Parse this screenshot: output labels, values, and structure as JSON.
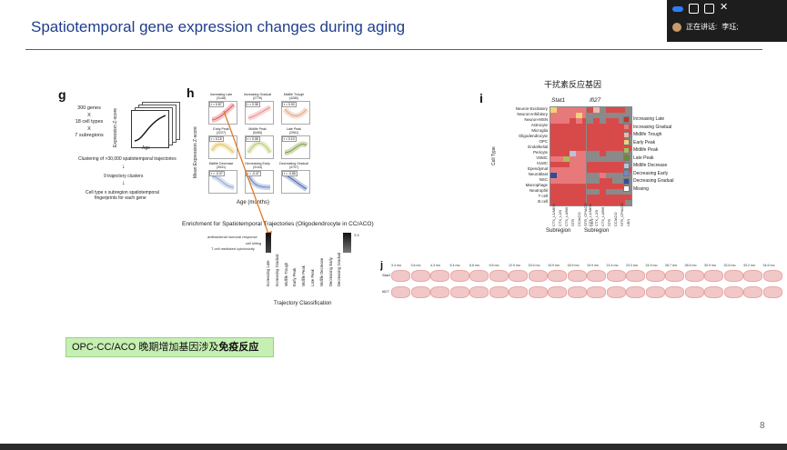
{
  "slide": {
    "title": "Spatiotemporal gene expression changes during aging",
    "page_number": "8",
    "callout_prefix": "OPC-CC/ACO 晚期增加基因涉及",
    "callout_bold": "免疫反应"
  },
  "meeting_bar": {
    "speaking_label": "正在讲话:",
    "speaker_name": "李珏;"
  },
  "panel_g": {
    "label": "g",
    "desc_lines": [
      "300 genes",
      "X",
      "18 cell types",
      "X",
      "7 subregions"
    ],
    "ylabel": "Expression Z-score",
    "xlabel": "Age",
    "step1": "Clustering of >30,000 spatiotemporal trajectories",
    "step2": "9 trajectory clusters",
    "step3_line1": "Cell type x subregion spatiotemporal",
    "step3_line2": "fingerprints for each gene"
  },
  "panel_h": {
    "label": "h",
    "ylabel": "Mean Expression Z-score",
    "xlabel": "Age (months)",
    "xticks": "10 20 30",
    "clusters": [
      {
        "name": "Increasing Late",
        "count": "(3148)",
        "r": "r = 0.87"
      },
      {
        "name": "Increasing Gradual",
        "count": "(2776)",
        "r": "r = 0.38"
      },
      {
        "name": "Midlife Trough",
        "count": "(4280)",
        "r": "r = 0.00"
      },
      {
        "name": "Early Peak",
        "count": "(2227)",
        "r": "r = 0.15"
      },
      {
        "name": "Midlife Peak",
        "count": "(5465)",
        "r": "r = 0.08"
      },
      {
        "name": "Late Peak",
        "count": "(2961)",
        "r": "r = 0.10"
      },
      {
        "name": "Midlife Decrease",
        "count": "(3531)",
        "r": "r = -0.07"
      },
      {
        "name": "Decreasing Early",
        "count": "(3144)",
        "r": "r = -0.47"
      },
      {
        "name": "Decreasing Gradual",
        "count": "(4707)",
        "r": "r = -0.85"
      }
    ]
  },
  "enrichment": {
    "title": "Enrichment for Spatiotemporal Trajectories (Oligodendrocyte in CC/ACO)",
    "terms": [
      "antibacterial humoral response",
      "cell killing",
      "T cell mediated cytotoxicity"
    ],
    "scale_max": "3.5",
    "xlabel": "Trajectory Classification",
    "categories": [
      "Increasing Late",
      "Increasing Gradual",
      "Midlife Trough",
      "Early Peak",
      "Midlife Peak",
      "Late Peak",
      "Midlife Decrease",
      "Decreasing Early",
      "Decreasing Gradual"
    ]
  },
  "panel_i": {
    "label": "i",
    "title": "干扰素反应基因",
    "heat_titles": [
      "Stat1",
      "Ifi27"
    ],
    "ylabel": "Cell Type",
    "xlabel": "Subregion",
    "cell_types": [
      "Neuron-Excitatory",
      "Neuron-Inhibitory",
      "Neuron-MSN",
      "Astrocyte",
      "Microglia",
      "Oligodendrocyte",
      "OPC",
      "Endothelial",
      "Pericyte",
      "VSMC",
      "VLMC",
      "Ependymal",
      "Neuroblast",
      "NSC",
      "Macrophage",
      "Neutrophil",
      "T cell",
      "B cell"
    ],
    "subregions": [
      "CTX_L1/MEN",
      "CTX_L2/3",
      "CTX_L4/5/6",
      "STR",
      "CC/ACO",
      "STR_CP/ACO",
      "VEN"
    ],
    "legend": [
      {
        "label": "Increasing Late",
        "color": "#c0392b"
      },
      {
        "label": "Increasing Gradual",
        "color": "#e8797a"
      },
      {
        "label": "Midlife Trough",
        "color": "#f0b7a8"
      },
      {
        "label": "Early Peak",
        "color": "#f1d27a"
      },
      {
        "label": "Midlife Peak",
        "color": "#a9bd5a"
      },
      {
        "label": "Late Peak",
        "color": "#6e8b2f"
      },
      {
        "label": "Midlife Decrease",
        "color": "#b8c4d8"
      },
      {
        "label": "Decreasing Early",
        "color": "#6f8ac2"
      },
      {
        "label": "Decreasing Gradual",
        "color": "#2b4fa0"
      },
      {
        "label": "Missing",
        "color": "#ffffff"
      }
    ]
  },
  "panel_j": {
    "label": "j",
    "ages": [
      "3.4 mo",
      "3.6 mo",
      "4.3 mo",
      "5.4 mo",
      "6.6 mo",
      "9.6 mo",
      "12.9 mo",
      "15.5 mo",
      "15.9 mo",
      "18.9 mo",
      "19.9 mo",
      "21.4 mo",
      "23.3 mo",
      "24.9 mo",
      "26.7 mo",
      "28.5 mo",
      "30.9 mo",
      "32.6 mo",
      "33.2 mo",
      "34.5 mo"
    ],
    "rows": [
      "Stat1",
      "Ifi27"
    ]
  }
}
